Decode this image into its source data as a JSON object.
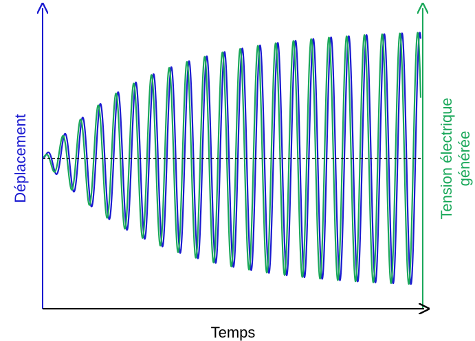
{
  "chart_data": {
    "type": "line",
    "xlabel": "Temps",
    "ylabel_left": "Déplacement",
    "ylabel_right_line1": "Tension électrique",
    "ylabel_right_line2": "générée",
    "x_range": [
      0,
      1
    ],
    "y_range": [
      -1,
      1
    ],
    "baseline_value": 0,
    "oscillation": {
      "cycles": 21.3,
      "onset": 0.0,
      "peak_amplitude": 0.85,
      "growth_rate": 3.6,
      "voltage_phase_lead_cycles": 0.12
    },
    "series": [
      {
        "key": "displacement",
        "color": "#1a1ad0"
      },
      {
        "key": "voltage",
        "color": "#1aa85a"
      }
    ],
    "baseline_style": "dashed",
    "baseline_color": "#000000",
    "grid": false
  }
}
